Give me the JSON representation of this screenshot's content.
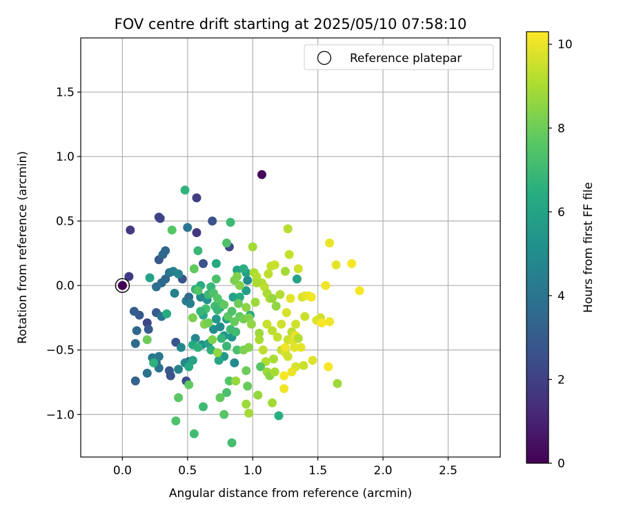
{
  "chart_data": {
    "type": "scatter",
    "title": "FOV centre drift starting at 2025/05/10 07:58:10",
    "xlabel": "Angular distance from reference (arcmin)",
    "ylabel": "Rotation from reference (arcmin)",
    "xlim": [
      -0.32,
      2.9
    ],
    "ylim": [
      -1.33,
      1.92
    ],
    "xticks": [
      "0.0",
      "0.5",
      "1.0",
      "1.5",
      "2.0",
      "2.5"
    ],
    "xtick_values": [
      0,
      0.5,
      1.0,
      1.5,
      2.0,
      2.5
    ],
    "yticks": [
      "−1.0",
      "−0.5",
      "0.0",
      "0.5",
      "1.0",
      "1.5"
    ],
    "ytick_values": [
      -1.0,
      -0.5,
      0.0,
      0.5,
      1.0,
      1.5
    ],
    "grid": true,
    "colormap": "viridis",
    "colorbar": {
      "label": "Hours from first FF file",
      "range": [
        0,
        10.3
      ],
      "ticks": [
        "0",
        "2",
        "4",
        "6",
        "8",
        "10"
      ],
      "tick_values": [
        0,
        2,
        4,
        6,
        8,
        10
      ]
    },
    "legend": {
      "placement": "top-right",
      "entries": [
        "Reference platepar"
      ]
    },
    "reference_point": {
      "x": 0.0,
      "y": 0.0
    },
    "series": [
      {
        "values": [
          [
            0.0,
            0.0,
            0.0
          ],
          [
            1.07,
            0.86,
            0.2
          ],
          [
            0.06,
            0.43,
            1.8
          ],
          [
            0.05,
            0.07,
            1.8
          ],
          [
            0.28,
            0.53,
            2.1
          ],
          [
            0.29,
            0.52,
            2.1
          ],
          [
            0.57,
            0.68,
            1.9
          ],
          [
            0.57,
            0.41,
            1.7
          ],
          [
            0.69,
            0.5,
            2.6
          ],
          [
            0.82,
            0.3,
            2.3
          ],
          [
            0.62,
            0.17,
            2.6
          ],
          [
            0.46,
            0.05,
            2.7
          ],
          [
            0.28,
            0.2,
            2.8
          ],
          [
            0.19,
            -0.29,
            2.2
          ],
          [
            0.13,
            -0.23,
            2.9
          ],
          [
            0.09,
            -0.2,
            3.1
          ],
          [
            0.26,
            -0.21,
            3.0
          ],
          [
            0.36,
            -0.66,
            2.9
          ],
          [
            0.37,
            -0.7,
            2.6
          ],
          [
            0.41,
            -0.44,
            2.7
          ],
          [
            0.51,
            -0.59,
            2.5
          ],
          [
            0.49,
            -0.74,
            2.5
          ],
          [
            0.1,
            -0.74,
            3.3
          ],
          [
            0.2,
            -0.34,
            2.9
          ],
          [
            0.11,
            -0.35,
            3.5
          ],
          [
            0.1,
            -0.45,
            3.6
          ],
          [
            0.19,
            -0.68,
            3.9
          ],
          [
            0.23,
            -0.56,
            4.2
          ],
          [
            0.26,
            -0.6,
            3.8
          ],
          [
            0.28,
            -0.64,
            3.9
          ],
          [
            0.28,
            -0.55,
            4.1
          ],
          [
            0.3,
            -0.24,
            4.0
          ],
          [
            0.3,
            0.02,
            3.6
          ],
          [
            0.26,
            -0.01,
            3.8
          ],
          [
            0.33,
            0.05,
            3.5
          ],
          [
            0.31,
            0.24,
            3.6
          ],
          [
            0.33,
            0.27,
            3.4
          ],
          [
            0.36,
            0.1,
            3.9
          ],
          [
            0.39,
            0.11,
            4.4
          ],
          [
            0.4,
            -0.06,
            4.5
          ],
          [
            0.43,
            0.09,
            4.7
          ],
          [
            0.5,
            0.45,
            4.0
          ],
          [
            0.49,
            -0.12,
            4.3
          ],
          [
            0.45,
            -0.48,
            4.8
          ],
          [
            0.43,
            -0.65,
            4.6
          ],
          [
            0.48,
            -0.6,
            4.9
          ],
          [
            0.51,
            -0.09,
            3.6
          ],
          [
            0.52,
            -0.14,
            4.5
          ],
          [
            0.6,
            -0.09,
            4.9
          ],
          [
            0.65,
            -0.11,
            5.3
          ],
          [
            0.56,
            -0.41,
            4.8
          ],
          [
            0.61,
            -0.46,
            5.2
          ],
          [
            0.7,
            -0.34,
            5.1
          ],
          [
            0.75,
            -0.32,
            5.0
          ],
          [
            0.78,
            -0.39,
            5.5
          ],
          [
            0.84,
            -0.4,
            5.4
          ],
          [
            0.78,
            -0.55,
            5.6
          ],
          [
            0.86,
            -0.6,
            4.9
          ],
          [
            0.72,
            -0.26,
            5.5
          ],
          [
            0.75,
            -0.17,
            5.7
          ],
          [
            0.8,
            -0.26,
            5.8
          ],
          [
            0.85,
            -0.09,
            5.9
          ],
          [
            0.9,
            -0.09,
            6.3
          ],
          [
            0.95,
            -0.04,
            5.7
          ],
          [
            0.96,
            0.04,
            5.0
          ],
          [
            0.95,
            0.1,
            5.8
          ],
          [
            0.98,
            -0.23,
            6.2
          ],
          [
            0.88,
            0.12,
            6.0
          ],
          [
            0.93,
            0.13,
            6.5
          ],
          [
            0.72,
            0.17,
            6.3
          ],
          [
            0.6,
            0.0,
            6.4
          ],
          [
            0.56,
            -0.03,
            6.7
          ],
          [
            0.62,
            -0.23,
            6.1
          ],
          [
            0.66,
            -0.45,
            5.9
          ],
          [
            0.63,
            -0.3,
            6.4
          ],
          [
            0.54,
            -0.46,
            6.3
          ],
          [
            0.54,
            -0.58,
            6.0
          ],
          [
            0.58,
            -0.48,
            6.6
          ],
          [
            0.68,
            -0.5,
            6.6
          ],
          [
            0.74,
            -0.58,
            6.1
          ],
          [
            0.76,
            -0.41,
            6.8
          ],
          [
            0.8,
            -0.47,
            6.9
          ],
          [
            0.83,
            -0.34,
            7.0
          ],
          [
            0.87,
            -0.36,
            7.1
          ],
          [
            0.88,
            -0.5,
            7.3
          ],
          [
            0.66,
            -0.07,
            7.0
          ],
          [
            0.68,
            -0.01,
            6.8
          ],
          [
            0.71,
            -0.16,
            7.1
          ],
          [
            0.73,
            -0.19,
            6.9
          ],
          [
            0.76,
            -0.14,
            7.2
          ],
          [
            0.72,
            0.05,
            7.3
          ],
          [
            0.7,
            -0.06,
            7.4
          ],
          [
            0.64,
            -0.18,
            7.2
          ],
          [
            0.6,
            -0.2,
            6.8
          ],
          [
            0.51,
            -0.63,
            6.3
          ],
          [
            0.24,
            -0.6,
            6.6
          ],
          [
            0.21,
            0.06,
            6.0
          ],
          [
            0.34,
            -0.22,
            6.3
          ],
          [
            0.48,
            0.74,
            6.7
          ],
          [
            0.58,
            0.27,
            6.9
          ],
          [
            0.83,
            0.49,
            7.0
          ],
          [
            0.8,
            0.33,
            7.4
          ],
          [
            0.38,
            0.43,
            7.6
          ],
          [
            0.55,
            0.13,
            7.8
          ],
          [
            0.58,
            -0.04,
            7.5
          ],
          [
            0.73,
            -0.1,
            7.6
          ],
          [
            0.78,
            -0.15,
            7.8
          ],
          [
            0.81,
            -0.24,
            7.7
          ],
          [
            0.84,
            -0.2,
            7.4
          ],
          [
            0.86,
            -0.28,
            7.9
          ],
          [
            0.89,
            -0.14,
            8.0
          ],
          [
            0.9,
            -0.24,
            7.8
          ],
          [
            0.93,
            -0.26,
            8.1
          ],
          [
            0.86,
            0.04,
            8.2
          ],
          [
            0.88,
            0.07,
            8.3
          ],
          [
            0.9,
            0.0,
            8.4
          ],
          [
            0.95,
            -0.17,
            8.5
          ],
          [
            0.97,
            -0.25,
            8.3
          ],
          [
            0.99,
            -0.3,
            8.6
          ],
          [
            0.93,
            -0.5,
            8.2
          ],
          [
            0.97,
            -0.48,
            8.4
          ],
          [
            0.95,
            -0.66,
            8.0
          ],
          [
            0.96,
            -0.78,
            7.9
          ],
          [
            0.82,
            -0.74,
            7.5
          ],
          [
            0.8,
            -0.83,
            7.3
          ],
          [
            0.75,
            -0.87,
            7.8
          ],
          [
            0.78,
            -1.0,
            7.6
          ],
          [
            0.84,
            -1.22,
            7.2
          ],
          [
            0.62,
            -0.94,
            7.0
          ],
          [
            0.55,
            -1.15,
            7.1
          ],
          [
            0.41,
            -1.05,
            7.4
          ],
          [
            0.43,
            -0.87,
            7.7
          ],
          [
            0.51,
            -0.77,
            7.8
          ],
          [
            0.19,
            -0.42,
            8.0
          ],
          [
            0.54,
            -0.25,
            8.2
          ],
          [
            0.63,
            -0.3,
            8.4
          ],
          [
            0.66,
            -0.29,
            8.1
          ],
          [
            0.69,
            -0.42,
            8.3
          ],
          [
            0.73,
            -0.52,
            8.6
          ],
          [
            0.87,
            -0.74,
            8.7
          ],
          [
            0.95,
            -0.92,
            8.8
          ],
          [
            0.97,
            -0.99,
            8.9
          ],
          [
            1.04,
            -0.85,
            8.7
          ],
          [
            1.05,
            -0.37,
            8.8
          ],
          [
            1.0,
            0.3,
            8.9
          ],
          [
            1.01,
            0.1,
            9.0
          ],
          [
            1.03,
            0.07,
            9.2
          ],
          [
            1.07,
            0.02,
            9.1
          ],
          [
            1.09,
            -0.01,
            9.3
          ],
          [
            1.11,
            -0.06,
            9.0
          ],
          [
            1.13,
            -0.1,
            9.2
          ],
          [
            1.15,
            -0.1,
            8.7
          ],
          [
            1.14,
            0.15,
            9.4
          ],
          [
            1.12,
            0.09,
            9.3
          ],
          [
            1.17,
            0.16,
            9.5
          ],
          [
            1.21,
            -0.07,
            9.1
          ],
          [
            1.25,
            0.11,
            8.9
          ],
          [
            1.27,
            0.44,
            9.2
          ],
          [
            1.28,
            0.24,
            9.4
          ],
          [
            1.35,
            0.13,
            9.6
          ],
          [
            1.34,
            0.05,
            6.0
          ],
          [
            1.02,
            -0.13,
            8.8
          ],
          [
            1.05,
            -0.42,
            9.0
          ],
          [
            1.08,
            -0.5,
            9.3
          ],
          [
            1.1,
            -0.59,
            9.1
          ],
          [
            1.06,
            -0.63,
            7.6
          ],
          [
            1.11,
            -0.67,
            8.8
          ],
          [
            1.13,
            -0.7,
            8.5
          ],
          [
            1.17,
            -0.67,
            9.0
          ],
          [
            1.15,
            -0.91,
            8.9
          ],
          [
            1.2,
            -1.01,
            6.5
          ],
          [
            1.16,
            -0.57,
            9.0
          ],
          [
            1.11,
            -0.3,
            9.5
          ],
          [
            1.15,
            -0.35,
            9.3
          ],
          [
            1.18,
            -0.16,
            8.6
          ],
          [
            1.22,
            -0.3,
            9.6
          ],
          [
            1.22,
            -0.5,
            9.4
          ],
          [
            1.25,
            -0.52,
            9.7
          ],
          [
            1.27,
            -0.42,
            9.5
          ],
          [
            1.27,
            -0.55,
            9.6
          ],
          [
            1.3,
            -0.36,
            9.3
          ],
          [
            1.31,
            -0.43,
            9.8
          ],
          [
            1.32,
            -0.48,
            9.9
          ],
          [
            1.33,
            -0.39,
            10.0
          ],
          [
            1.33,
            -0.3,
            9.6
          ],
          [
            1.35,
            -0.41,
            9.2
          ],
          [
            1.37,
            -0.48,
            9.9
          ],
          [
            1.4,
            -0.24,
            9.5
          ],
          [
            1.38,
            -0.09,
            9.7
          ],
          [
            1.4,
            -0.08,
            9.9
          ],
          [
            1.43,
            -0.08,
            10.0
          ],
          [
            1.45,
            -0.09,
            10.1
          ],
          [
            1.49,
            -0.27,
            9.8
          ],
          [
            1.52,
            -0.25,
            9.6
          ],
          [
            1.53,
            -0.29,
            10.2
          ],
          [
            1.56,
            0.0,
            10.1
          ],
          [
            1.59,
            0.33,
            10.0
          ],
          [
            1.64,
            0.16,
            9.9
          ],
          [
            1.76,
            0.17,
            10.2
          ],
          [
            1.82,
            -0.04,
            10.2
          ],
          [
            1.59,
            -0.28,
            10.1
          ],
          [
            1.58,
            -0.63,
            10.2
          ],
          [
            1.46,
            -0.58,
            9.8
          ],
          [
            1.39,
            -0.62,
            9.5
          ],
          [
            1.33,
            -0.63,
            9.7
          ],
          [
            1.3,
            -0.67,
            10.0
          ],
          [
            1.24,
            -0.8,
            10.1
          ],
          [
            1.24,
            -0.7,
            10.2
          ],
          [
            1.25,
            -0.48,
            10.1
          ],
          [
            1.29,
            -0.1,
            9.9
          ],
          [
            1.26,
            -0.21,
            9.7
          ],
          [
            1.65,
            -0.76,
            8.8
          ],
          [
            1.19,
            -0.4,
            9.4
          ],
          [
            1.03,
            0.02,
            9.0
          ]
        ]
      }
    ]
  }
}
